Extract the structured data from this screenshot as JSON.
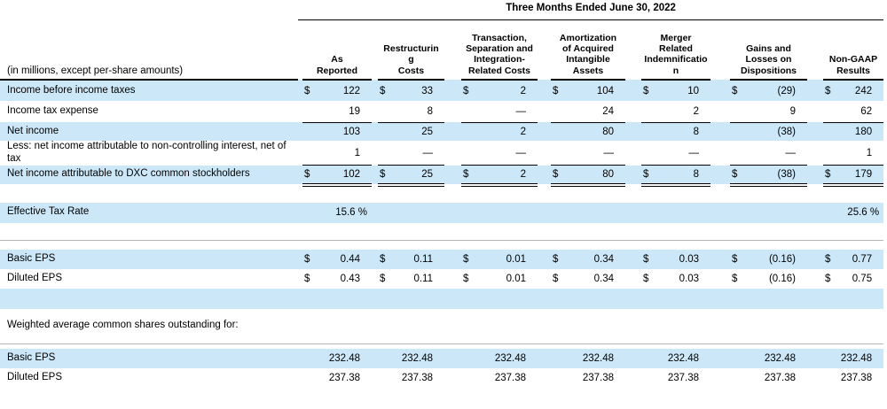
{
  "currency": "$",
  "title": "Three Months Ended June 30, 2022",
  "corner_label": "(in millions, except per-share amounts)",
  "columns": [
    {
      "label": "As\nReported"
    },
    {
      "label": "Restructurin\ng\nCosts"
    },
    {
      "label": "Transaction,\nSeparation and\nIntegration-\nRelated Costs"
    },
    {
      "label": "Amortization\nof Acquired\nIntangible\nAssets"
    },
    {
      "label": "Merger\nRelated\nIndemnificatio\nn"
    },
    {
      "label": "Gains and\nLosses on\nDispositions"
    },
    {
      "label": "Non-GAAP\nResults"
    }
  ],
  "rows": {
    "ibt": {
      "label": "Income before income taxes",
      "values": [
        "122",
        "33",
        "2",
        "104",
        "10",
        "(29)",
        "242"
      ]
    },
    "ite": {
      "label": "Income tax expense",
      "values": [
        "19",
        "8",
        "—",
        "24",
        "2",
        "9",
        "62"
      ]
    },
    "ni": {
      "label": "Net income",
      "values": [
        "103",
        "25",
        "2",
        "80",
        "8",
        "(38)",
        "180"
      ]
    },
    "less": {
      "label": "Less: net income attributable to non-controlling interest, net of tax",
      "values": [
        "1",
        "—",
        "—",
        "—",
        "—",
        "—",
        "1"
      ]
    },
    "dxc": {
      "label": "Net income attributable to DXC common stockholders",
      "values": [
        "102",
        "25",
        "2",
        "80",
        "8",
        "(38)",
        "179"
      ]
    },
    "etr": {
      "label": "Effective Tax Rate",
      "values": [
        "15.6 %",
        "",
        "",
        "",
        "",
        "",
        "25.6 %"
      ]
    },
    "beps": {
      "label": "Basic EPS",
      "values": [
        "0.44",
        "0.11",
        "0.01",
        "0.34",
        "0.03",
        "(0.16)",
        "0.77"
      ]
    },
    "deps": {
      "label": "Diluted EPS",
      "values": [
        "0.43",
        "0.11",
        "0.01",
        "0.34",
        "0.03",
        "(0.16)",
        "0.75"
      ]
    },
    "wavg": {
      "label": "Weighted average common shares outstanding for:"
    },
    "bshares": {
      "label": "Basic EPS",
      "values": [
        "232.48",
        "232.48",
        "232.48",
        "232.48",
        "232.48",
        "232.48",
        "232.48"
      ]
    },
    "dshares": {
      "label": "Diluted EPS",
      "values": [
        "237.38",
        "237.38",
        "237.38",
        "237.38",
        "237.38",
        "237.38",
        "237.38"
      ]
    }
  }
}
